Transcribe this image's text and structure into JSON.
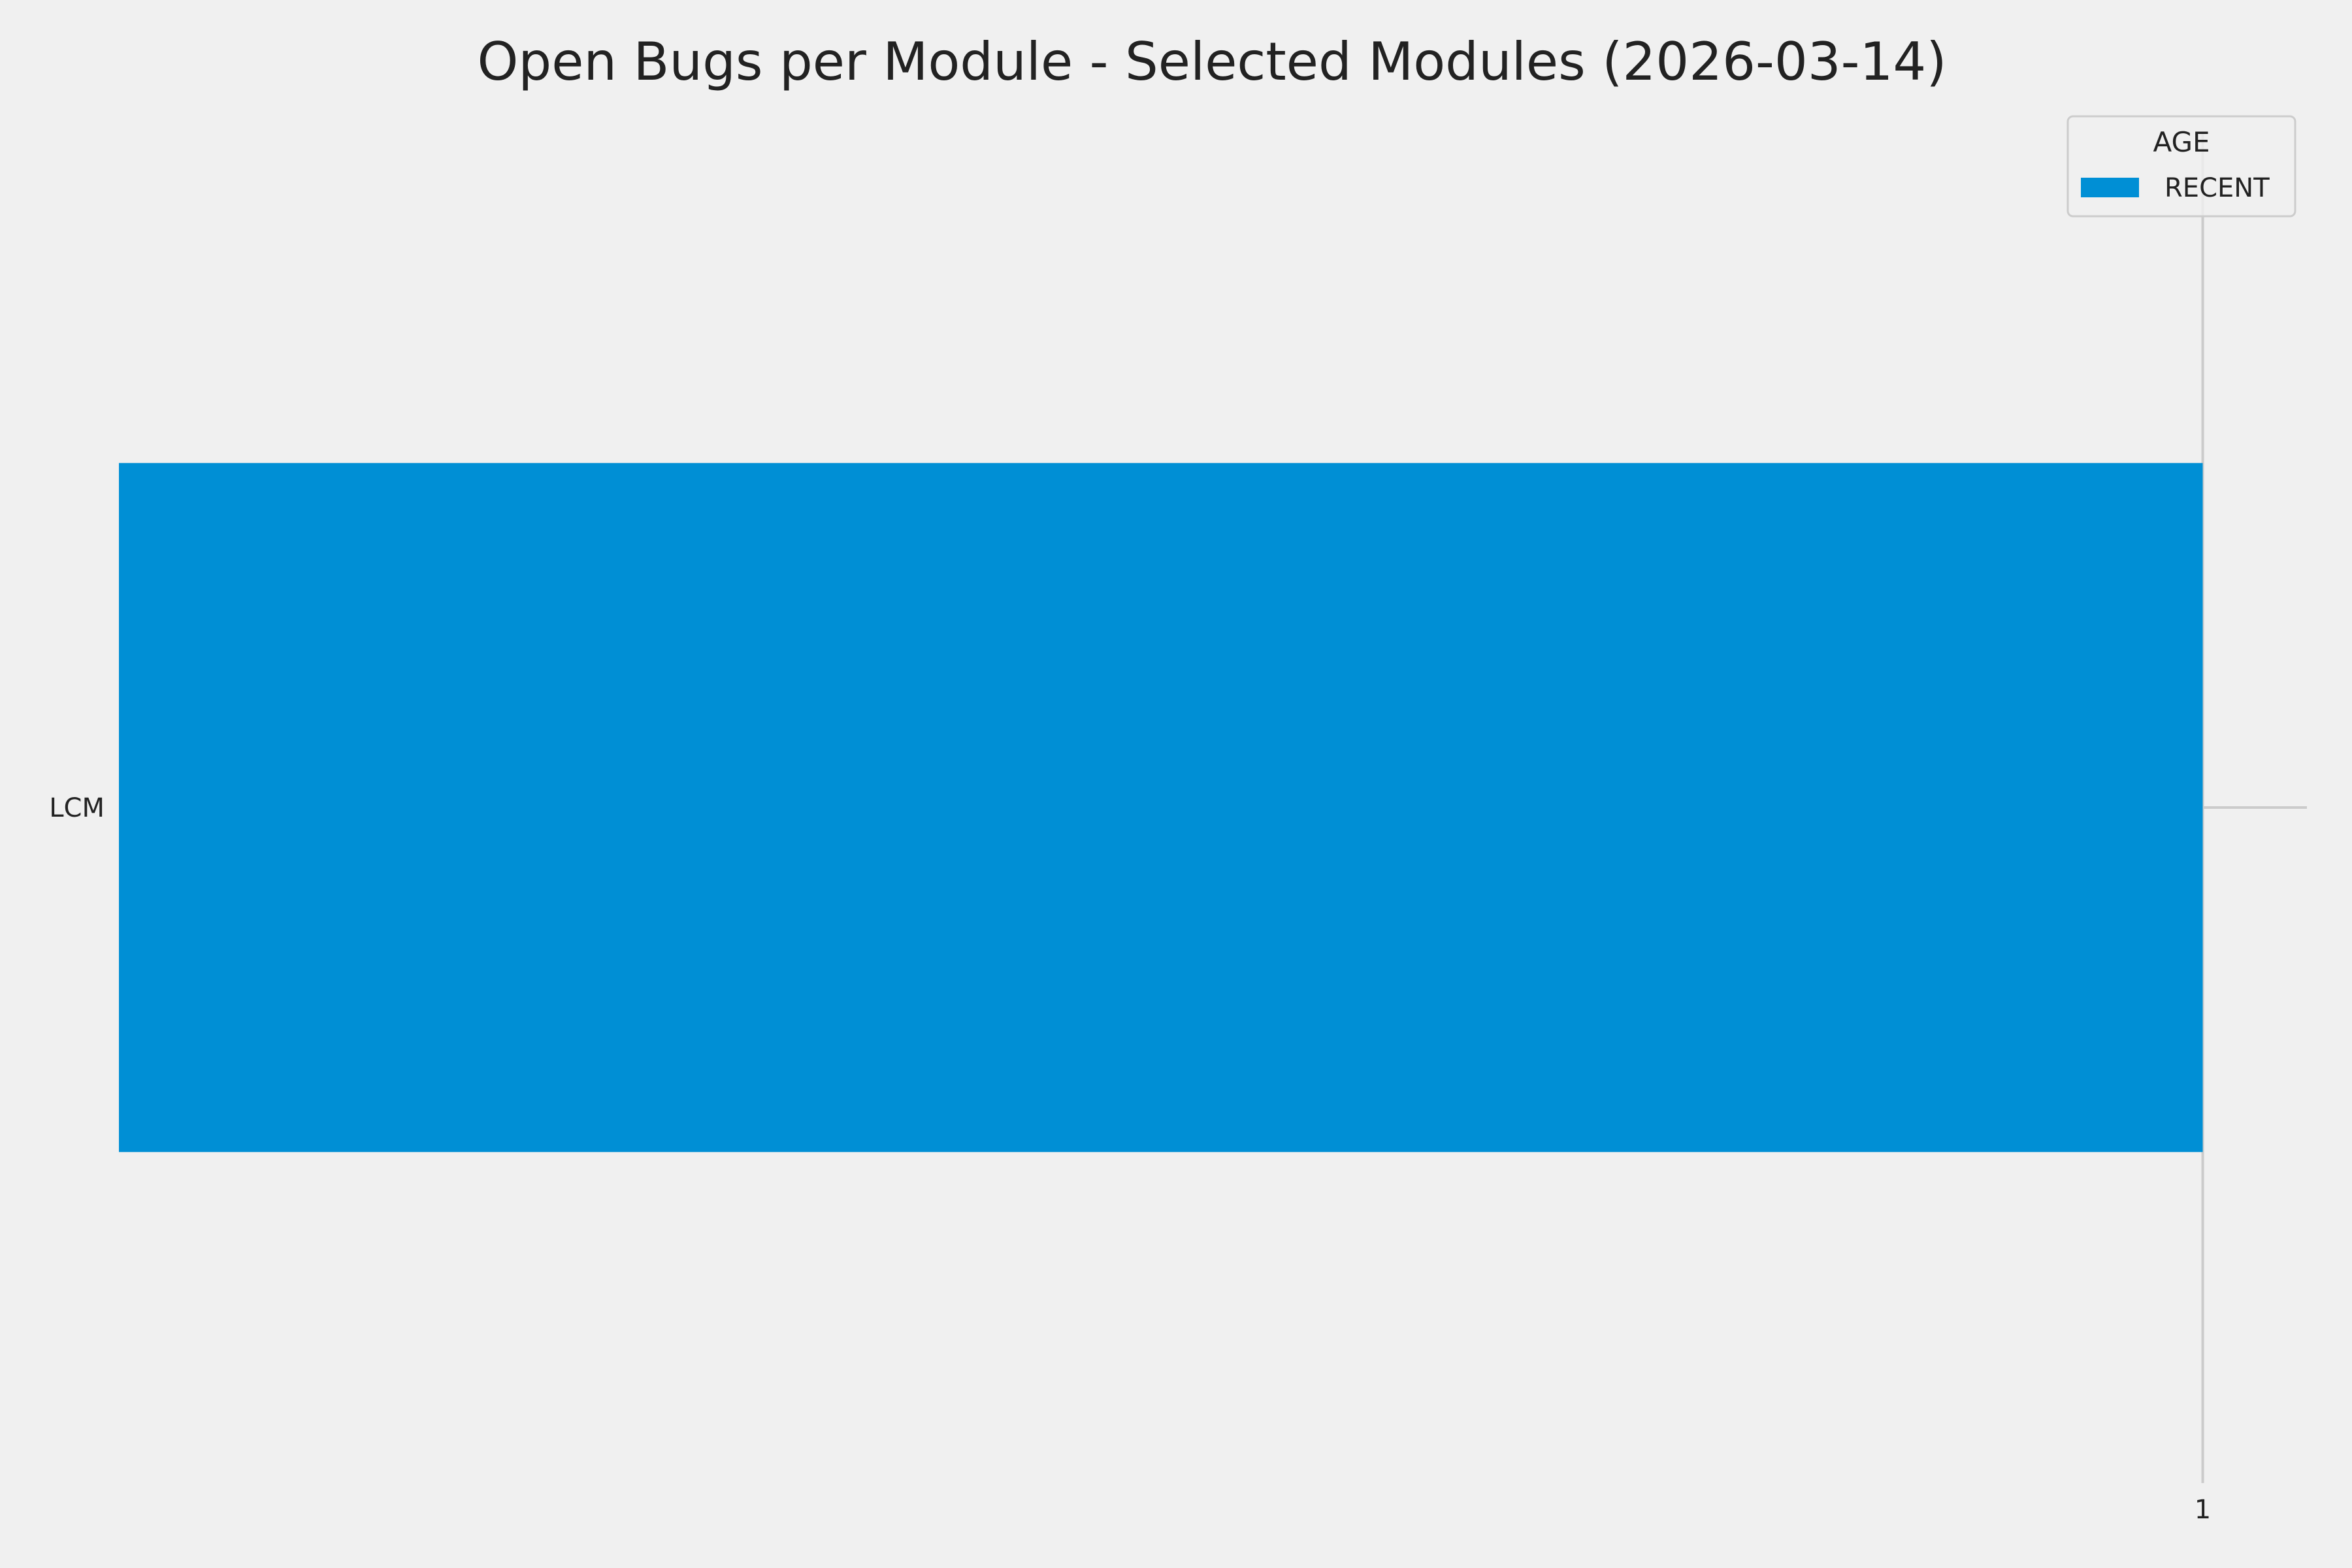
{
  "chart_data": {
    "type": "bar",
    "orientation": "horizontal",
    "title": "Open Bugs per Module - Selected Modules (2026-03-14)",
    "xlabel": "",
    "ylabel": "",
    "categories": [
      "LCM"
    ],
    "series": [
      {
        "name": "RECENT",
        "values": [
          1
        ],
        "color": "#008fd5"
      }
    ],
    "xlim": [
      0,
      1.05
    ],
    "xticks": [
      "1"
    ],
    "grid": true,
    "legend": {
      "title": "AGE",
      "placement": "top-right",
      "entries": [
        "RECENT"
      ]
    },
    "background": "#f0f0f0",
    "grid_color": "#cbcbcb"
  }
}
